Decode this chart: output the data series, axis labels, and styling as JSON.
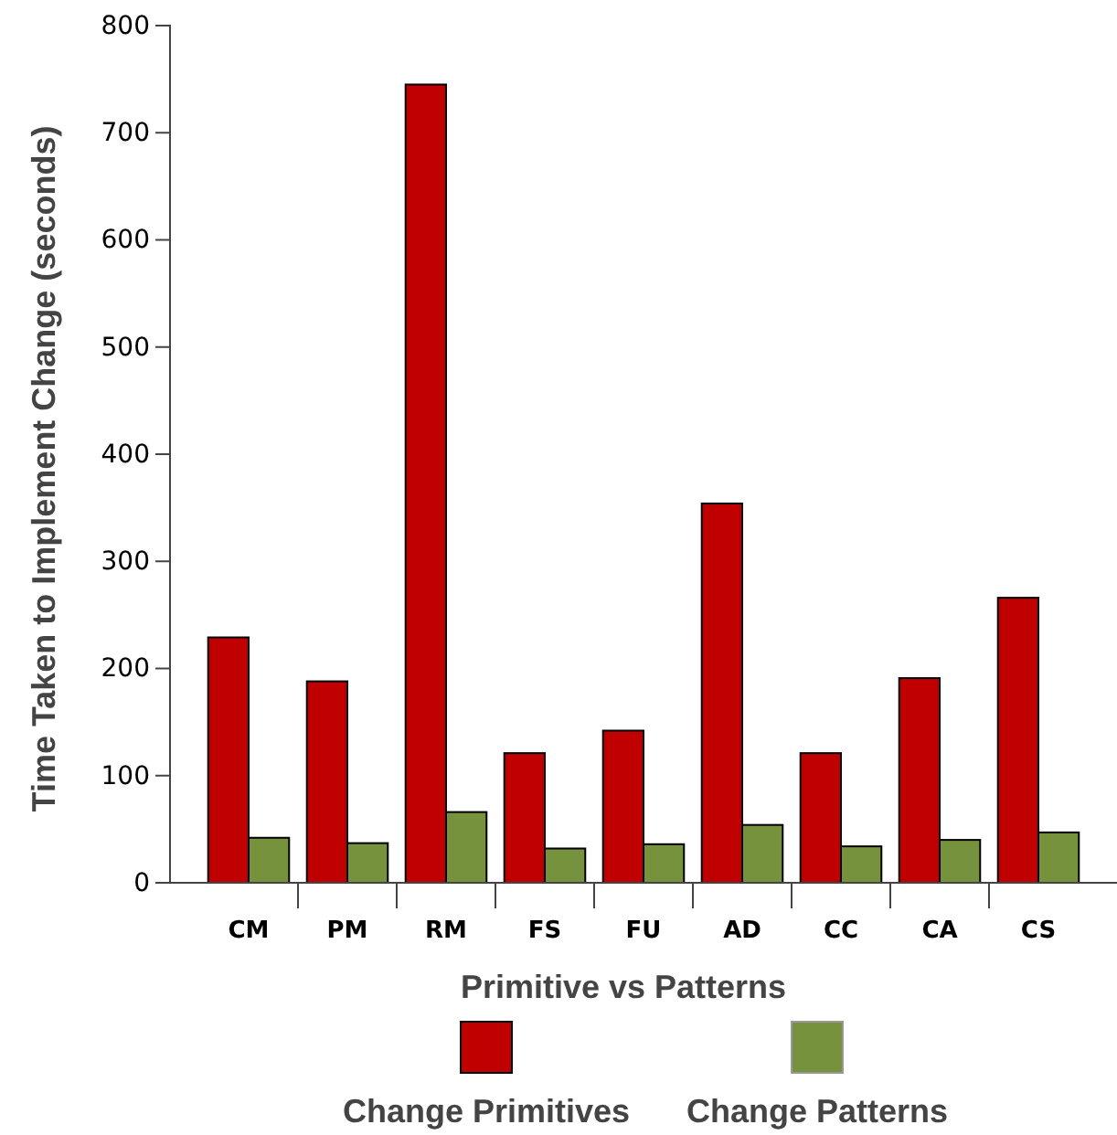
{
  "chart_data": {
    "type": "bar",
    "xlabel": "Primitive vs Patterns",
    "ylabel": "Time Taken to Implement Change (seconds)",
    "categories": [
      "CM",
      "PM",
      "RM",
      "FS",
      "FU",
      "AD",
      "CC",
      "CA",
      "CS"
    ],
    "series": [
      {
        "name": "Change Primitives",
        "color": "#c00000",
        "values": [
          229,
          188,
          745,
          121,
          142,
          354,
          121,
          191,
          266
        ]
      },
      {
        "name": "Change Patterns",
        "color": "#76923c",
        "values": [
          42,
          37,
          66,
          32,
          36,
          54,
          34,
          40,
          47
        ]
      }
    ],
    "ylim": [
      0,
      800
    ],
    "yticks": [
      0,
      100,
      200,
      300,
      400,
      500,
      600,
      700,
      800
    ],
    "legend": "bottom"
  }
}
